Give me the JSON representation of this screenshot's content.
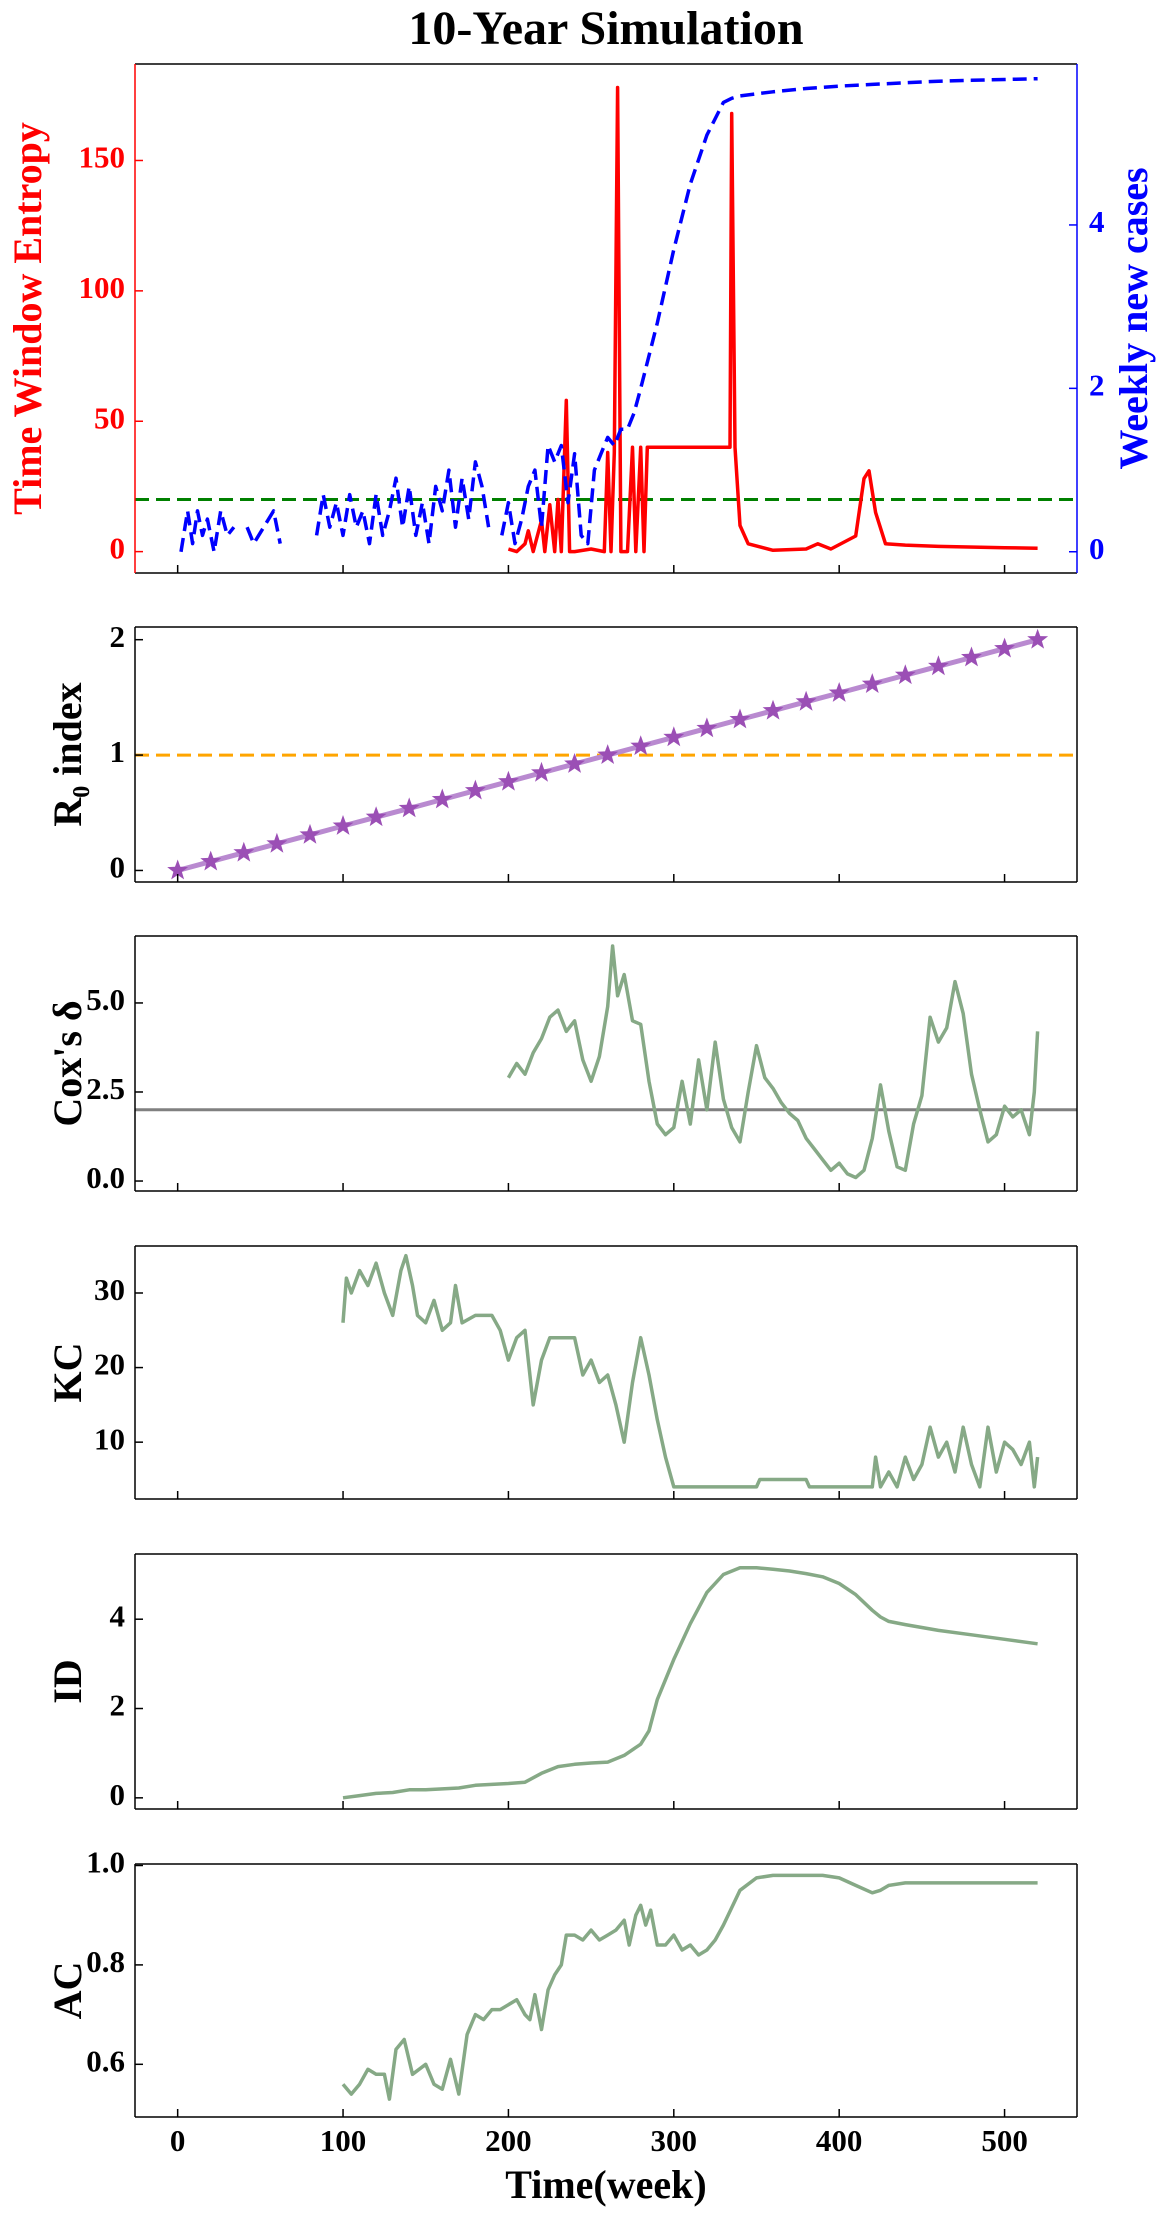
{
  "chart_data": [
    {
      "type": "line",
      "title": "10-Year Simulation",
      "ylabel": "Time Window Entropy",
      "y2label": "Weekly new cases",
      "ycolor": "#ff0000",
      "y2color": "#0000ff",
      "xlim": [
        -25.8,
        543.8
      ],
      "xticks": [
        0,
        100,
        200,
        300,
        400,
        500
      ],
      "ylim": [
        -8.2,
        187
      ],
      "yticks": [
        0,
        50,
        100,
        150
      ],
      "y2lim": [
        -0.26,
        5.97
      ],
      "y2ticks": [
        0,
        2,
        4
      ],
      "hline": {
        "value": 20,
        "color": "#008000",
        "style": "dashed"
      },
      "series": [
        {
          "color": "#ff0000",
          "style": "solid",
          "x": [
            200,
            205,
            210,
            212,
            215,
            220,
            222,
            225,
            228,
            230,
            232,
            235,
            237,
            240,
            250,
            258,
            260,
            262,
            264,
            266,
            268,
            272,
            275,
            277,
            280,
            282,
            284,
            300,
            330,
            334,
            335,
            337,
            340,
            345,
            360,
            380,
            387,
            395,
            410,
            415,
            418,
            422,
            428,
            440,
            460,
            500,
            520
          ],
          "values": [
            1,
            0,
            3,
            8,
            0,
            12,
            0,
            18,
            0,
            20,
            0,
            58,
            0,
            0,
            1,
            0,
            38,
            0,
            38,
            178,
            0,
            0,
            40,
            0,
            40,
            0,
            40,
            40,
            40,
            40,
            168,
            40,
            10,
            3,
            0.5,
            1,
            3,
            1,
            6,
            28,
            31,
            15,
            3,
            2.5,
            2,
            1.5,
            1.3
          ]
        },
        {
          "color": "#0000ff",
          "style": "dashed",
          "axis": "y2",
          "x": [
            2,
            6,
            9,
            12,
            15,
            18,
            22,
            26,
            30,
            34,
            38,
            42,
            46,
            52,
            58,
            62,
            66,
            72,
            78,
            84,
            88,
            92,
            96,
            100,
            104,
            108,
            112,
            116,
            120,
            124,
            128,
            132,
            136,
            140,
            144,
            148,
            152,
            156,
            160,
            164,
            168,
            172,
            176,
            180,
            184,
            188,
            192,
            196,
            200,
            204,
            208,
            212,
            216,
            220,
            224,
            228,
            232,
            236,
            240,
            244,
            248,
            252,
            256,
            260,
            264,
            268,
            272,
            276,
            280,
            290,
            300,
            310,
            320,
            330,
            335,
            340,
            360,
            380,
            400,
            420,
            440,
            460,
            480,
            500,
            520
          ],
          "values": [
            0,
            0.5,
            0.1,
            0.5,
            0.2,
            0.4,
            0,
            0.5,
            0.2,
            0.3,
            null,
            0.3,
            0.1,
            0.3,
            0.5,
            0.1,
            null,
            null,
            null,
            0.2,
            0.7,
            0.3,
            0.6,
            0.2,
            0.7,
            0.3,
            0.5,
            0.1,
            0.7,
            0.2,
            0.5,
            0.9,
            0.3,
            0.8,
            0.2,
            0.6,
            0.1,
            0.8,
            0.5,
            1.0,
            0.3,
            0.9,
            0.4,
            1.1,
            0.8,
            0.3,
            null,
            0.2,
            0.6,
            0.1,
            0.4,
            0.8,
            1.0,
            0.3,
            1.3,
            1.1,
            1.3,
            0.6,
            1.2,
            0.2,
            0.1,
            1.0,
            1.2,
            1.4,
            1.3,
            1.5,
            1.5,
            1.7,
            2.0,
            2.8,
            3.7,
            4.5,
            5.1,
            5.5,
            5.55,
            5.58,
            5.63,
            5.67,
            5.7,
            5.72,
            5.74,
            5.76,
            5.77,
            5.78,
            5.79
          ]
        }
      ]
    },
    {
      "type": "line",
      "ylabel": "R₀ index",
      "xlim": [
        -25.8,
        543.8
      ],
      "xticks": [
        0,
        100,
        200,
        300,
        400,
        500
      ],
      "ylim": [
        -0.1,
        2.11
      ],
      "yticks": [
        0,
        1,
        2
      ],
      "hline": {
        "value": 1,
        "color": "#ffa500",
        "style": "dashed"
      },
      "series": [
        {
          "color": "#b98ad0",
          "style": "solid",
          "marker": "star",
          "marker_color": "#9b4fb5",
          "x": [
            0,
            20,
            40,
            60,
            80,
            100,
            120,
            140,
            160,
            180,
            200,
            220,
            240,
            260,
            280,
            300,
            320,
            340,
            360,
            380,
            400,
            420,
            440,
            460,
            480,
            500,
            520
          ],
          "values": [
            0,
            0.077,
            0.154,
            0.231,
            0.308,
            0.385,
            0.462,
            0.538,
            0.615,
            0.692,
            0.769,
            0.846,
            0.923,
            1.0,
            1.077,
            1.154,
            1.231,
            1.308,
            1.385,
            1.462,
            1.538,
            1.615,
            1.692,
            1.769,
            1.846,
            1.923,
            2.0
          ]
        }
      ]
    },
    {
      "type": "line",
      "ylabel": "Cox's δ",
      "xlim": [
        -25.8,
        543.8
      ],
      "xticks": [
        0,
        100,
        200,
        300,
        400,
        500
      ],
      "ylim": [
        -0.28,
        6.88
      ],
      "yticks": [
        {
          "value": 0,
          "label": "0.0"
        },
        2.5,
        {
          "value": 5,
          "label": "5.0"
        }
      ],
      "hline": {
        "value": 2,
        "color": "#808080",
        "style": "solid"
      },
      "series": [
        {
          "color": "#86a986",
          "style": "solid",
          "x": [
            200,
            205,
            210,
            215,
            220,
            225,
            230,
            235,
            240,
            245,
            250,
            255,
            260,
            263,
            266,
            270,
            275,
            280,
            285,
            290,
            295,
            300,
            305,
            310,
            315,
            320,
            325,
            330,
            335,
            340,
            345,
            350,
            355,
            360,
            365,
            370,
            375,
            380,
            385,
            390,
            395,
            400,
            405,
            410,
            415,
            420,
            425,
            430,
            435,
            440,
            445,
            450,
            455,
            460,
            465,
            470,
            475,
            480,
            485,
            490,
            495,
            500,
            505,
            510,
            515,
            518,
            520
          ],
          "values": [
            2.9,
            3.3,
            3.0,
            3.6,
            4.0,
            4.6,
            4.8,
            4.2,
            4.5,
            3.4,
            2.8,
            3.5,
            4.9,
            6.6,
            5.2,
            5.8,
            4.5,
            4.4,
            2.8,
            1.6,
            1.3,
            1.5,
            2.8,
            1.6,
            3.4,
            2.0,
            3.9,
            2.3,
            1.5,
            1.1,
            2.5,
            3.8,
            2.9,
            2.6,
            2.2,
            1.9,
            1.7,
            1.2,
            0.9,
            0.6,
            0.3,
            0.5,
            0.2,
            0.1,
            0.3,
            1.2,
            2.7,
            1.4,
            0.4,
            0.3,
            1.6,
            2.4,
            4.6,
            3.9,
            4.3,
            5.6,
            4.7,
            3.0,
            2.0,
            1.1,
            1.3,
            2.1,
            1.8,
            2.0,
            1.3,
            2.5,
            4.2
          ]
        }
      ]
    },
    {
      "type": "line",
      "ylabel": "KC",
      "xlim": [
        -25.8,
        543.8
      ],
      "xticks": [
        0,
        100,
        200,
        300,
        400,
        500
      ],
      "ylim": [
        2.38,
        36.3
      ],
      "yticks": [
        10,
        20,
        30
      ],
      "series": [
        {
          "color": "#86a986",
          "style": "solid",
          "x": [
            100,
            102,
            105,
            110,
            115,
            120,
            125,
            130,
            135,
            138,
            142,
            145,
            150,
            155,
            160,
            165,
            168,
            172,
            180,
            190,
            195,
            200,
            205,
            210,
            215,
            220,
            225,
            230,
            240,
            245,
            250,
            255,
            260,
            265,
            270,
            275,
            280,
            285,
            290,
            295,
            300,
            320,
            340,
            350,
            352,
            370,
            380,
            382,
            400,
            420,
            422,
            425,
            430,
            435,
            440,
            445,
            450,
            455,
            460,
            465,
            470,
            475,
            480,
            485,
            490,
            495,
            500,
            505,
            510,
            515,
            518,
            520
          ],
          "values": [
            26,
            32,
            30,
            33,
            31,
            34,
            30,
            27,
            33,
            35,
            31,
            27,
            26,
            29,
            25,
            26,
            31,
            26,
            27,
            27,
            25,
            21,
            24,
            25,
            15,
            21,
            24,
            24,
            24,
            19,
            21,
            18,
            19,
            15,
            10,
            18,
            24,
            19,
            13,
            8,
            4,
            4,
            4,
            4,
            5,
            5,
            5,
            4,
            4,
            4,
            8,
            4,
            6,
            4,
            8,
            5,
            7,
            12,
            8,
            10,
            6,
            12,
            7,
            4,
            12,
            6,
            10,
            9,
            7,
            10,
            4,
            8
          ]
        }
      ]
    },
    {
      "type": "line",
      "ylabel": "ID",
      "xlim": [
        -25.8,
        543.8
      ],
      "xticks": [
        0,
        100,
        200,
        300,
        400,
        500
      ],
      "ylim": [
        -0.25,
        5.46
      ],
      "yticks": [
        0,
        2,
        4
      ],
      "series": [
        {
          "color": "#86a986",
          "style": "solid",
          "x": [
            100,
            110,
            120,
            130,
            140,
            150,
            160,
            170,
            180,
            190,
            200,
            210,
            220,
            230,
            240,
            250,
            260,
            270,
            280,
            285,
            290,
            300,
            310,
            320,
            330,
            340,
            350,
            360,
            370,
            380,
            390,
            400,
            410,
            420,
            425,
            430,
            440,
            460,
            480,
            500,
            520
          ],
          "values": [
            0,
            0.05,
            0.1,
            0.12,
            0.18,
            0.18,
            0.2,
            0.22,
            0.28,
            0.3,
            0.32,
            0.35,
            0.55,
            0.7,
            0.75,
            0.78,
            0.8,
            0.95,
            1.2,
            1.5,
            2.2,
            3.1,
            3.9,
            4.6,
            5.0,
            5.15,
            5.15,
            5.12,
            5.08,
            5.02,
            4.95,
            4.8,
            4.55,
            4.2,
            4.05,
            3.95,
            3.88,
            3.75,
            3.65,
            3.55,
            3.45
          ]
        }
      ]
    },
    {
      "type": "line",
      "ylabel": "AC",
      "xlabel": "Time(week)",
      "xlim": [
        -25.8,
        543.8
      ],
      "xticks": [
        0,
        100,
        200,
        300,
        400,
        500
      ],
      "ylim": [
        0.494,
        1.003
      ],
      "yticks": [
        0.6,
        0.8,
        {
          "value": 1,
          "label": "1.0"
        }
      ],
      "series": [
        {
          "color": "#86a986",
          "style": "solid",
          "x": [
            100,
            105,
            110,
            115,
            120,
            125,
            128,
            132,
            137,
            142,
            150,
            155,
            160,
            165,
            170,
            175,
            180,
            185,
            190,
            195,
            200,
            205,
            210,
            213,
            216,
            220,
            224,
            228,
            232,
            235,
            240,
            245,
            250,
            255,
            260,
            265,
            270,
            273,
            277,
            280,
            283,
            286,
            290,
            295,
            300,
            305,
            310,
            315,
            320,
            325,
            330,
            340,
            350,
            360,
            370,
            380,
            390,
            400,
            410,
            420,
            425,
            430,
            440,
            460,
            480,
            500,
            520
          ],
          "values": [
            0.56,
            0.54,
            0.56,
            0.59,
            0.58,
            0.58,
            0.53,
            0.63,
            0.65,
            0.58,
            0.6,
            0.56,
            0.55,
            0.61,
            0.54,
            0.66,
            0.7,
            0.69,
            0.71,
            0.71,
            0.72,
            0.73,
            0.7,
            0.69,
            0.74,
            0.67,
            0.75,
            0.78,
            0.8,
            0.86,
            0.86,
            0.85,
            0.87,
            0.85,
            0.86,
            0.87,
            0.89,
            0.84,
            0.9,
            0.92,
            0.88,
            0.91,
            0.84,
            0.84,
            0.86,
            0.83,
            0.84,
            0.82,
            0.83,
            0.85,
            0.88,
            0.95,
            0.975,
            0.98,
            0.98,
            0.98,
            0.98,
            0.975,
            0.96,
            0.945,
            0.95,
            0.96,
            0.965,
            0.965,
            0.965,
            0.965,
            0.965
          ]
        }
      ]
    }
  ]
}
